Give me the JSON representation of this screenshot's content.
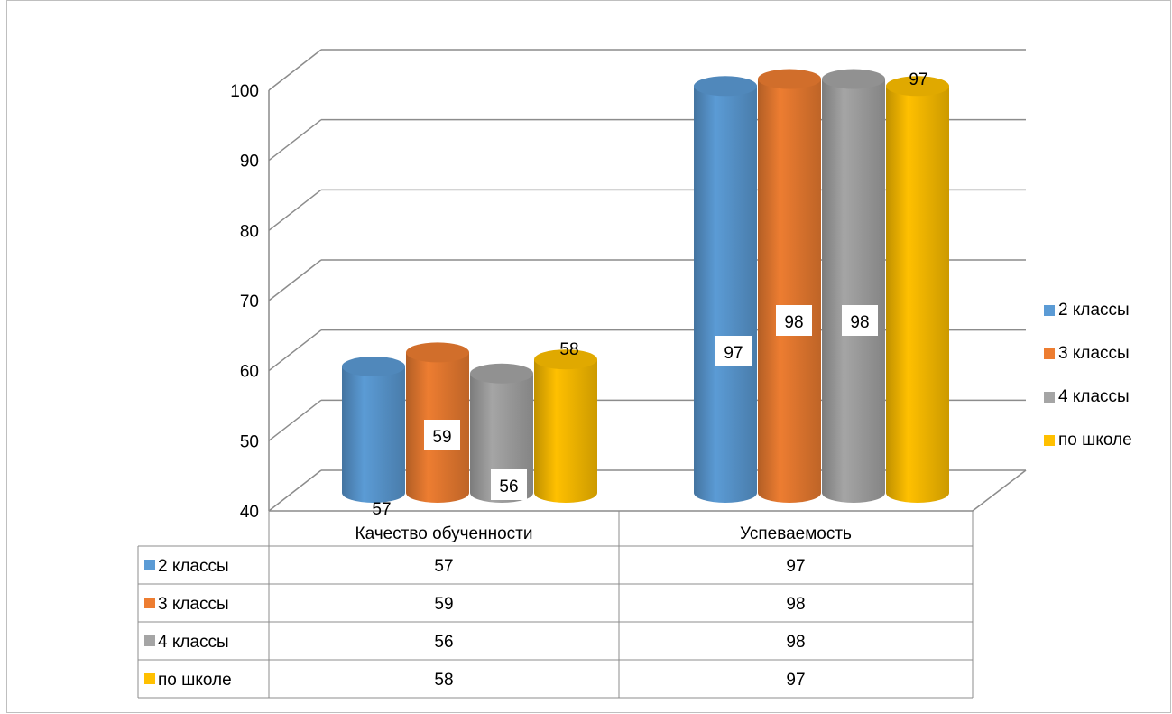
{
  "chart_data": {
    "type": "bar",
    "variant": "3d-cylinder",
    "categories": [
      "Качество обученности",
      "Успеваемость"
    ],
    "series": [
      {
        "name": "2 классы",
        "color": "#5b9bd5",
        "values": [
          57,
          97
        ]
      },
      {
        "name": "3 классы",
        "color": "#ed7d31",
        "values": [
          59,
          98
        ]
      },
      {
        "name": "4 классы",
        "color": "#a5a5a5",
        "values": [
          56,
          98
        ]
      },
      {
        "name": "по школе",
        "color": "#ffc000",
        "values": [
          58,
          97
        ]
      }
    ],
    "ylim": [
      40,
      100
    ],
    "yticks": [
      "40",
      "50",
      "60",
      "70",
      "80",
      "90",
      "100"
    ],
    "grid": true,
    "legend_position": "right",
    "data_table": true
  }
}
